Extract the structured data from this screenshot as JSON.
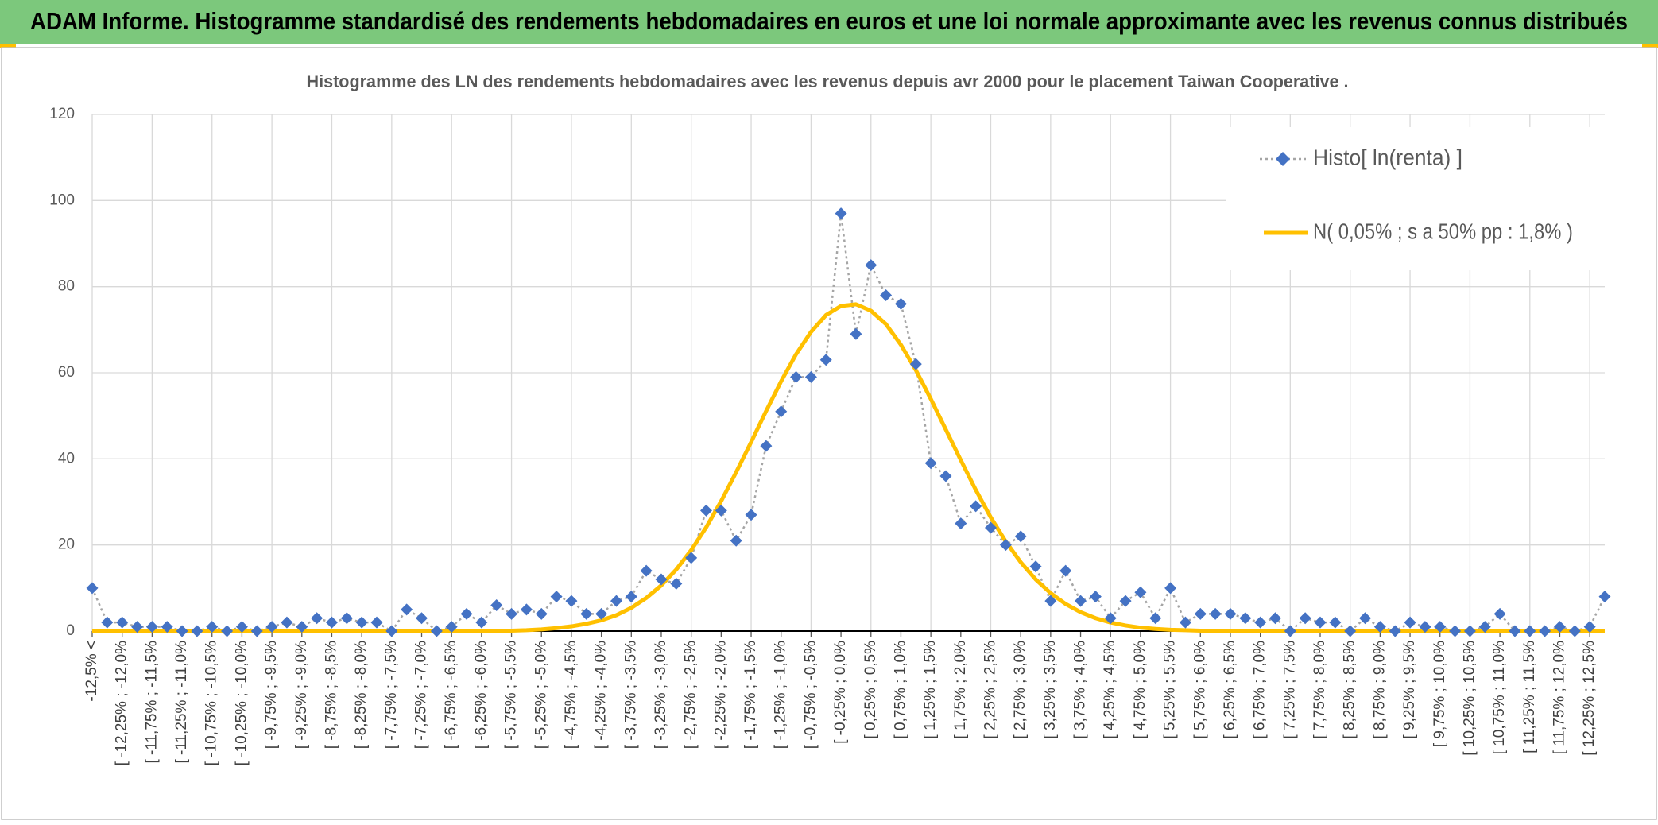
{
  "chart_data": {
    "type": "line",
    "title": "ADAM Informe. Histogramme standardisé des rendements hebdomadaires en euros et une loi normale approximante avec les revenus connus distribués",
    "subtitle": "Histogramme des LN des rendements hebdomadaires avec les revenus depuis avr 2000 pour le placement Taiwan Cooperative .",
    "categories": [
      "-12,5% <",
      null,
      "[ -12,25% ; -12,0%",
      null,
      "[ -11,75% ; -11,5%",
      null,
      "[ -11,25% ; -11,0%",
      null,
      "[ -10,75% ; -10,5%",
      null,
      "[ -10,25% ; -10,0%",
      null,
      "[ -9,75% ; -9,5%",
      null,
      "[ -9,25% ; -9,0%",
      null,
      "[ -8,75% ; -8,5%",
      null,
      "[ -8,25% ; -8,0%",
      null,
      "[ -7,75% ; -7,5%",
      null,
      "[ -7,25% ; -7,0%",
      null,
      "[ -6,75% ; -6,5%",
      null,
      "[ -6,25% ; -6,0%",
      null,
      "[ -5,75% ; -5,5%",
      null,
      "[ -5,25% ; -5,0%",
      null,
      "[ -4,75% ; -4,5%",
      null,
      "[ -4,25% ; -4,0%",
      null,
      "[ -3,75% ; -3,5%",
      null,
      "[ -3,25% ; -3,0%",
      null,
      "[ -2,75% ; -2,5%",
      null,
      "[ -2,25% ; -2,0%",
      null,
      "[ -1,75% ; -1,5%",
      null,
      "[ -1,25% ; -1,0%",
      null,
      "[ -0,75% ; -0,5%",
      null,
      "[ -0,25% ; 0,0%",
      null,
      "[ 0,25% ; 0,5%",
      null,
      "[ 0,75% ; 1,0%",
      null,
      "[ 1,25% ; 1,5%",
      null,
      "[ 1,75% ; 2,0%",
      null,
      "[ 2,25% ; 2,5%",
      null,
      "[ 2,75% ; 3,0%",
      null,
      "[ 3,25% ; 3,5%",
      null,
      "[ 3,75% ; 4,0%",
      null,
      "[ 4,25% ; 4,5%",
      null,
      "[ 4,75% ; 5,0%",
      null,
      "[ 5,25% ; 5,5%",
      null,
      "[ 5,75% ; 6,0%",
      null,
      "[ 6,25% ; 6,5%",
      null,
      "[ 6,75% ; 7,0%",
      null,
      "[ 7,25% ; 7,5%",
      null,
      "[ 7,75% ; 8,0%",
      null,
      "[ 8,25% ; 8,5%",
      null,
      "[ 8,75% ; 9,0%",
      null,
      "[ 9,25% ; 9,5%",
      null,
      "[ 9,75% ; 10,0%",
      null,
      "[ 10,25% ; 10,5%",
      null,
      "[ 10,75% ; 11,0%",
      null,
      "[ 11,25% ; 11,5%",
      null,
      "[ 11,75% ; 12,0%",
      null,
      "[ 12,25% ; 12,5%",
      null
    ],
    "series": [
      {
        "name": "Histo[ ln(renta) ]",
        "color": "#4472c4",
        "line_color": "#a5a5a5",
        "values": [
          10,
          2,
          2,
          1,
          1,
          1,
          0,
          0,
          1,
          0,
          1,
          0,
          1,
          2,
          1,
          3,
          2,
          3,
          2,
          2,
          0,
          5,
          3,
          0,
          1,
          4,
          2,
          6,
          4,
          5,
          4,
          8,
          7,
          4,
          4,
          7,
          8,
          14,
          12,
          11,
          17,
          28,
          28,
          21,
          27,
          43,
          51,
          59,
          59,
          63,
          97,
          69,
          85,
          78,
          76,
          62,
          39,
          36,
          25,
          29,
          24,
          20,
          22,
          15,
          7,
          14,
          7,
          8,
          3,
          7,
          9,
          3,
          10,
          2,
          4,
          4,
          4,
          3,
          2,
          3,
          0,
          3,
          2,
          2,
          0,
          3,
          1,
          0,
          2,
          1,
          1,
          0,
          0,
          1,
          4,
          0,
          0,
          0,
          1,
          0,
          1,
          8
        ]
      },
      {
        "name": "N( 0,05% ; s a 50% pp : 1,8% )",
        "color": "#ffc000",
        "values": [
          0,
          0,
          0,
          0,
          0,
          0,
          0,
          0,
          0,
          0,
          0,
          0,
          0,
          0,
          0,
          0,
          0,
          0,
          0,
          0,
          0,
          0,
          0,
          0,
          0,
          0,
          0,
          0,
          0.1,
          0.2,
          0.4,
          0.7,
          1.1,
          1.7,
          2.5,
          3.7,
          5.4,
          7.7,
          10.6,
          14.3,
          18.8,
          24.1,
          30.2,
          36.9,
          43.9,
          51.1,
          58.0,
          64.3,
          69.5,
          73.4,
          75.5,
          75.9,
          74.4,
          71.3,
          66.5,
          60.6,
          53.9,
          46.8,
          39.7,
          32.8,
          26.4,
          20.8,
          16.0,
          12.0,
          8.8,
          6.3,
          4.4,
          3.0,
          2.0,
          1.3,
          0.8,
          0.5,
          0.3,
          0.2,
          0.1,
          0,
          0,
          0,
          0,
          0,
          0,
          0,
          0,
          0,
          0,
          0,
          0,
          0,
          0,
          0,
          0,
          0,
          0,
          0,
          0,
          0,
          0,
          0,
          0,
          0,
          0,
          0
        ]
      }
    ],
    "ylim": [
      0,
      120
    ],
    "yticks": [
      0,
      20,
      40,
      60,
      80,
      100,
      120
    ],
    "grid": true,
    "legend": "top-right"
  }
}
